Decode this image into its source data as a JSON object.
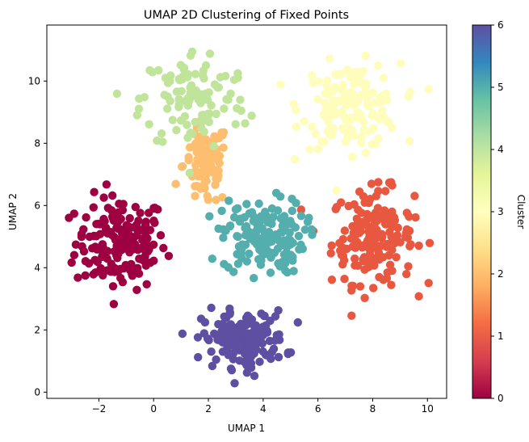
{
  "chart_data": {
    "type": "scatter",
    "title": "UMAP 2D Clustering of Fixed Points",
    "xlabel": "UMAP 1",
    "ylabel": "UMAP 2",
    "xlim": [
      -3.9,
      10.7
    ],
    "ylim": [
      -0.2,
      11.8
    ],
    "x_ticks": [
      -2,
      0,
      2,
      4,
      6,
      8,
      10
    ],
    "y_ticks": [
      0,
      2,
      4,
      6,
      8,
      10
    ],
    "grid": false,
    "legend": "colorbar-right",
    "colorbar": {
      "label": "Cluster",
      "range": [
        0,
        6
      ],
      "ticks": [
        0,
        1,
        2,
        3,
        4,
        5,
        6
      ],
      "colormap": "Spectral",
      "stops": [
        "#9e0142",
        "#d53e4f",
        "#f46d43",
        "#fdae61",
        "#fee08b",
        "#ffffbf",
        "#e6f598",
        "#abdda4",
        "#66c2a5",
        "#3288bd",
        "#5e4fa2"
      ]
    },
    "clusters": [
      {
        "cluster": 0,
        "color": "#9e0142",
        "center": [
          -1.2,
          4.8
        ],
        "spread": [
          1.1,
          1.0
        ],
        "count": 170
      },
      {
        "cluster": 1,
        "color": "#e8573f",
        "center": [
          8.0,
          5.0
        ],
        "spread": [
          1.0,
          1.0
        ],
        "count": 175
      },
      {
        "cluster": 2,
        "color": "#fdbf6f",
        "center": [
          1.9,
          7.3
        ],
        "spread": [
          0.55,
          0.9
        ],
        "count": 95
      },
      {
        "cluster": 3,
        "color": "#fefdbc",
        "center": [
          7.2,
          9.2
        ],
        "spread": [
          1.2,
          0.9
        ],
        "count": 150
      },
      {
        "cluster": 4,
        "color": "#c0e59a",
        "center": [
          1.5,
          9.4
        ],
        "spread": [
          1.3,
          1.1
        ],
        "count": 110
      },
      {
        "cluster": 5,
        "color": "#54aead",
        "center": [
          4.0,
          5.0
        ],
        "spread": [
          1.0,
          0.8
        ],
        "count": 160
      },
      {
        "cluster": 6,
        "color": "#5e4fa2",
        "center": [
          3.3,
          1.7
        ],
        "spread": [
          1.0,
          0.6
        ],
        "count": 160
      }
    ]
  }
}
